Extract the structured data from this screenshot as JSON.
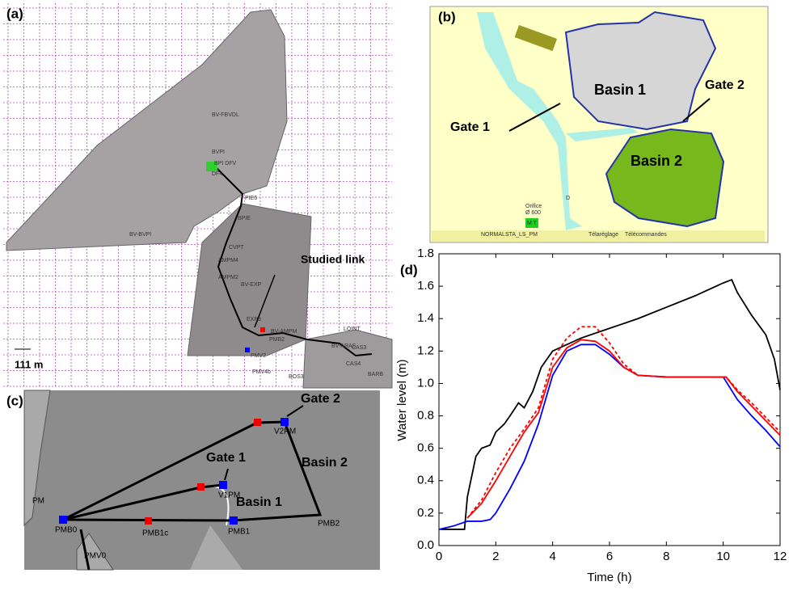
{
  "panel_a": {
    "label": "(a)",
    "scale": "111 m",
    "callout": "Studied link",
    "areas": [
      "BV-FBVDL",
      "BV-BVPI",
      "BV-EXP",
      "BV-AMPM",
      "BV-ARAS"
    ],
    "nodes": [
      "BVPI",
      "BPI DFV",
      "DF4",
      "PIE6",
      "BPIE",
      "CVPT",
      "AMPM4",
      "AMPM2",
      "EXP3",
      "PMV2",
      "PMB2",
      "PMV4b",
      "LOINT",
      "CAS4",
      "CAS3",
      "BOS3",
      "BARB"
    ]
  },
  "panel_b": {
    "label": "(b)",
    "gate1": "Gate 1",
    "gate2": "Gate 2",
    "basin1": "Basin 1",
    "basin2": "Basin 2",
    "small": [
      "Orifice",
      "Ø 600",
      "D",
      "M T",
      "NORMAL",
      "STA_LS_PM",
      "Télaréglage",
      "Télécommandes"
    ]
  },
  "panel_c": {
    "label": "(c)",
    "gate2": "Gate 2",
    "gate1": "Gate 1",
    "basin2": "Basin 2",
    "basin1": "Basin 1",
    "nodes": [
      "V2PM",
      "V1PM",
      "PM",
      "PMB0",
      "PMB1c",
      "PMB1",
      "PMB2",
      "PMV0"
    ]
  },
  "chart_data": {
    "type": "line",
    "panel_label": "(d)",
    "x_label": "Time (h)",
    "y_label": "Water level (m)",
    "xlim": [
      0,
      12
    ],
    "xticks": [
      0,
      2,
      4,
      6,
      8,
      10,
      12
    ],
    "ylim": [
      0,
      1.8
    ],
    "yticks": [
      {
        "value": 0,
        "label": "0.0"
      },
      0.2,
      0.4,
      0.6,
      0.8,
      {
        "value": 1,
        "label": "1.0"
      },
      1.2,
      1.4,
      1.6,
      1.8
    ],
    "series": [
      {
        "color": "#000000",
        "dash": "solid",
        "x": [
          0.05,
          0.9,
          1.0,
          1.3,
          1.5,
          1.8,
          2.0,
          2.3,
          2.5,
          2.8,
          3.0,
          3.3,
          3.6,
          4,
          5,
          6,
          7,
          8,
          9,
          10,
          10.3,
          10.5,
          11,
          11.5,
          11.8,
          12
        ],
        "values": [
          0.1,
          0.1,
          0.3,
          0.55,
          0.6,
          0.62,
          0.7,
          0.75,
          0.8,
          0.88,
          0.85,
          0.95,
          1.1,
          1.2,
          1.28,
          1.34,
          1.4,
          1.47,
          1.54,
          1.62,
          1.64,
          1.56,
          1.42,
          1.3,
          1.15,
          0.96
        ]
      },
      {
        "color": "#0000ff",
        "dash": "solid",
        "x": [
          0,
          0.5,
          1,
          1.5,
          1.8,
          2.0,
          2.5,
          3,
          3.5,
          4,
          4.5,
          5,
          5.5,
          6,
          6.5,
          7,
          8,
          9,
          10,
          10.5,
          11,
          11.5,
          12
        ],
        "values": [
          0.1,
          0.12,
          0.15,
          0.15,
          0.16,
          0.2,
          0.35,
          0.52,
          0.75,
          1.05,
          1.2,
          1.24,
          1.24,
          1.18,
          1.1,
          1.05,
          1.04,
          1.04,
          1.04,
          0.9,
          0.8,
          0.71,
          0.61
        ]
      },
      {
        "color": "#ff0000",
        "dash": "solid",
        "x": [
          1,
          1.5,
          2,
          2.5,
          3,
          3.5,
          4,
          4.5,
          5,
          5.5,
          6,
          6.5,
          7,
          8,
          9,
          10.1,
          10.5,
          11,
          11.5,
          12
        ],
        "values": [
          0.17,
          0.26,
          0.4,
          0.55,
          0.7,
          0.82,
          1.1,
          1.22,
          1.27,
          1.26,
          1.2,
          1.1,
          1.05,
          1.04,
          1.04,
          1.04,
          0.95,
          0.86,
          0.77,
          0.68
        ]
      },
      {
        "color": "#ff0000",
        "dash": "dashed",
        "x": [
          1,
          1.5,
          2,
          2.5,
          3,
          3.5,
          4,
          4.5,
          5,
          5.5,
          6,
          6.5,
          7,
          8,
          9,
          10.1,
          10.5,
          11,
          11.5,
          12
        ],
        "values": [
          0.17,
          0.28,
          0.45,
          0.6,
          0.72,
          0.85,
          1.15,
          1.28,
          1.35,
          1.35,
          1.25,
          1.12,
          1.05,
          1.04,
          1.04,
          1.04,
          0.96,
          0.88,
          0.79,
          0.7
        ]
      }
    ]
  }
}
